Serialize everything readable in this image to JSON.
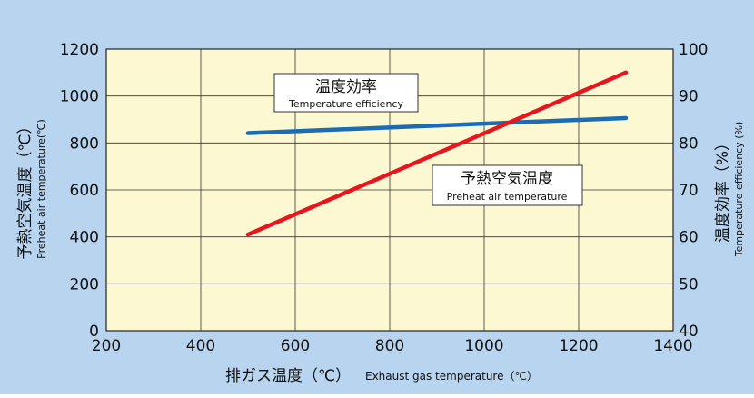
{
  "colors": {
    "background": "#b8d4ee",
    "plot_area": "#fcf8d2",
    "grid": "#333333",
    "efficiency_line": "#1a6db5",
    "air_temp_line": "#e8141e"
  },
  "chart_data": {
    "type": "line",
    "x_axis": {
      "label_jp": "排ガス温度（℃）",
      "label_en": "Exhaust gas temperature（℃）",
      "range": [
        200,
        1400
      ],
      "ticks": [
        "200",
        "400",
        "600",
        "800",
        "1000",
        "1200",
        "1400"
      ]
    },
    "y_axis_left": {
      "label_jp": "予熱空気温度（℃）",
      "label_en": "Preheat air temperature(℃)",
      "range": [
        0,
        1200
      ],
      "ticks": [
        "0",
        "200",
        "400",
        "600",
        "800",
        "1000",
        "1200"
      ]
    },
    "y_axis_right": {
      "label_jp": "温度効率（%）",
      "label_en": "Temperature efficiency (%)",
      "range": [
        40,
        100
      ],
      "ticks": [
        "40",
        "50",
        "60",
        "70",
        "80",
        "90",
        "100"
      ]
    },
    "grid": true,
    "series": [
      {
        "name_jp": "温度効率",
        "name_en": "Temperature efficiency",
        "axis": "right",
        "x": [
          500,
          1300
        ],
        "y": [
          82.1,
          85.3
        ]
      },
      {
        "name_jp": "予熱空気温度",
        "name_en": "Preheat air temperature",
        "axis": "left",
        "x": [
          500,
          1300
        ],
        "y": [
          410,
          1100
        ]
      }
    ]
  }
}
